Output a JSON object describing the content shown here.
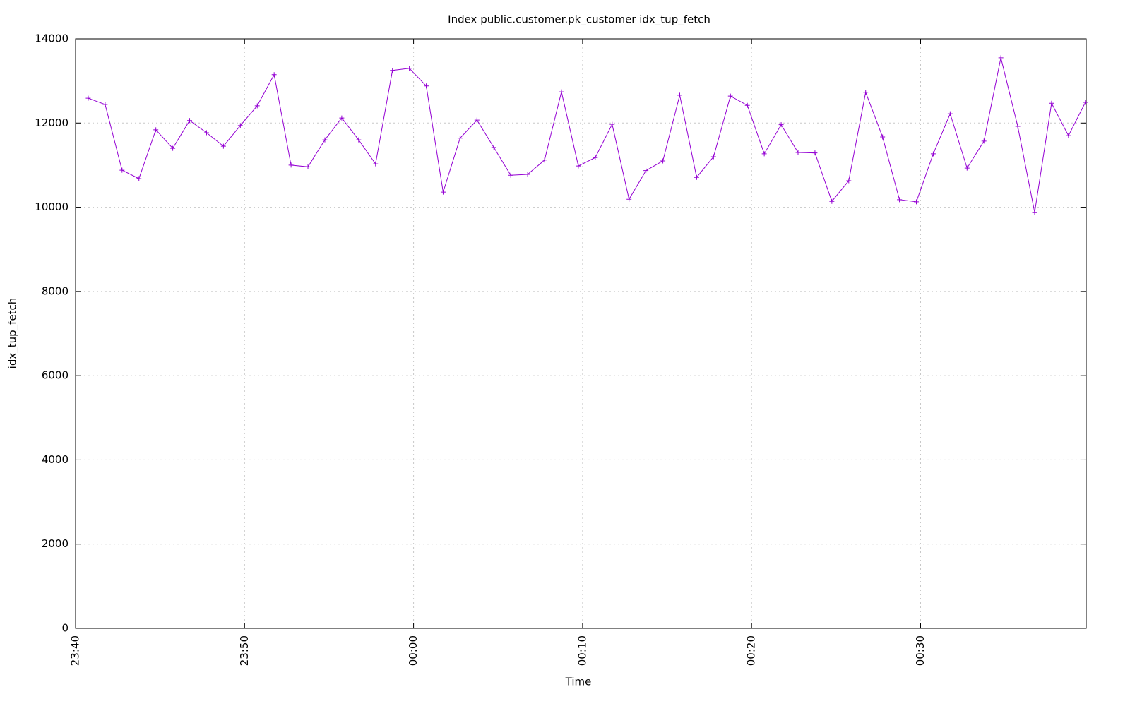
{
  "chart_data": {
    "type": "line",
    "title": "Index public.customer.pk_customer idx_tup_fetch",
    "x_label": "Time",
    "y_label": "idx_tup_fetch",
    "x": [
      0.75,
      1.75,
      2.75,
      3.75,
      4.75,
      5.75,
      6.75,
      7.75,
      8.75,
      9.75,
      10.75,
      11.75,
      12.75,
      13.75,
      14.75,
      15.75,
      16.75,
      17.75,
      18.75,
      19.75,
      20.75,
      21.75,
      22.75,
      23.75,
      24.75,
      25.75,
      26.75,
      27.75,
      28.75,
      29.75,
      30.75,
      31.75,
      32.75,
      33.75,
      34.75,
      35.75,
      36.75,
      37.75,
      38.75,
      39.75,
      40.75,
      41.75,
      42.75,
      43.75,
      44.75,
      45.75,
      46.75,
      47.75,
      48.75,
      49.75,
      50.75,
      51.75,
      52.75,
      53.75,
      54.75,
      55.75,
      56.75,
      57.75,
      58.75,
      59.75
    ],
    "series": [
      {
        "name": "idx_tup_fetch",
        "color": "#9400d3",
        "values": [
          12590,
          12440,
          10880,
          10680,
          11840,
          11400,
          12060,
          11770,
          11450,
          11940,
          12410,
          13150,
          11000,
          10960,
          11600,
          12120,
          11600,
          11030,
          13250,
          13300,
          12880,
          10360,
          11640,
          12070,
          11420,
          10760,
          10780,
          11120,
          12740,
          10980,
          11180,
          11970,
          10190,
          10870,
          11100,
          12660,
          10710,
          11200,
          12640,
          12420,
          11270,
          11960,
          11300,
          11290,
          10140,
          10630,
          12730,
          11670,
          10180,
          10130,
          11270,
          12220,
          10930,
          11570,
          13550,
          11920,
          9880,
          12470,
          11700,
          12490
        ]
      }
    ],
    "xlim": [
      0,
      59.8
    ],
    "xticks": [
      {
        "value": 0,
        "label": "23:40"
      },
      {
        "value": 10,
        "label": "23:50"
      },
      {
        "value": 20,
        "label": "00:00"
      },
      {
        "value": 30,
        "label": "00:10"
      },
      {
        "value": 40,
        "label": "00:20"
      },
      {
        "value": 50,
        "label": "00:30"
      }
    ],
    "ylim": [
      0,
      14000
    ],
    "yticks": [
      0,
      2000,
      4000,
      6000,
      8000,
      10000,
      12000,
      14000
    ],
    "grid": true,
    "marker": "+"
  }
}
